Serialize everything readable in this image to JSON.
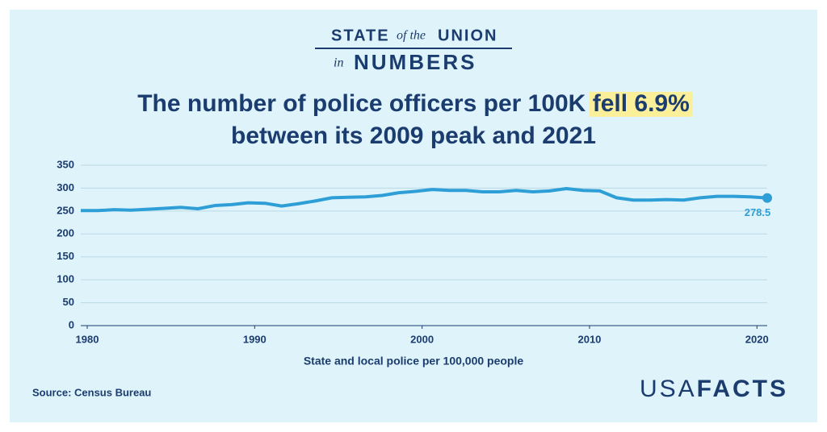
{
  "header": {
    "state": "STATE",
    "of_the": "of the",
    "union": "UNION",
    "in": "in",
    "numbers": "NUMBERS"
  },
  "chart_data": {
    "type": "line",
    "title": {
      "line1": "The number of police officers per 100K",
      "highlight": "fell 6.9%",
      "line2": "between its 2009 peak and 2021"
    },
    "x_label": "State and local police per 100,000 people",
    "x": [
      1980,
      1981,
      1982,
      1983,
      1984,
      1985,
      1986,
      1987,
      1988,
      1989,
      1990,
      1991,
      1992,
      1993,
      1994,
      1995,
      1996,
      1997,
      1998,
      1999,
      2000,
      2001,
      2002,
      2003,
      2004,
      2005,
      2006,
      2007,
      2008,
      2009,
      2010,
      2011,
      2012,
      2013,
      2014,
      2015,
      2016,
      2017,
      2018,
      2019,
      2020,
      2021
    ],
    "values": [
      251,
      251,
      253,
      252,
      254,
      256,
      258,
      255,
      262,
      264,
      268,
      267,
      261,
      266,
      272,
      279,
      280,
      281,
      284,
      290,
      293,
      297,
      295,
      295,
      292,
      292,
      295,
      292,
      294,
      299,
      295,
      294,
      279,
      274,
      274,
      275,
      274,
      279,
      282,
      282,
      281,
      278.5
    ],
    "color": "#2e9fd6",
    "xlim": [
      1980,
      2021
    ],
    "xticks": [
      1980,
      1990,
      2000,
      2010,
      2020
    ],
    "ylim": [
      0,
      350
    ],
    "yticks": [
      0,
      50,
      100,
      150,
      200,
      250,
      300,
      350
    ],
    "grid": true
  },
  "footer": {
    "source": "Source: Census Bureau",
    "brand_light": "USA",
    "brand_bold": "FACTS"
  }
}
